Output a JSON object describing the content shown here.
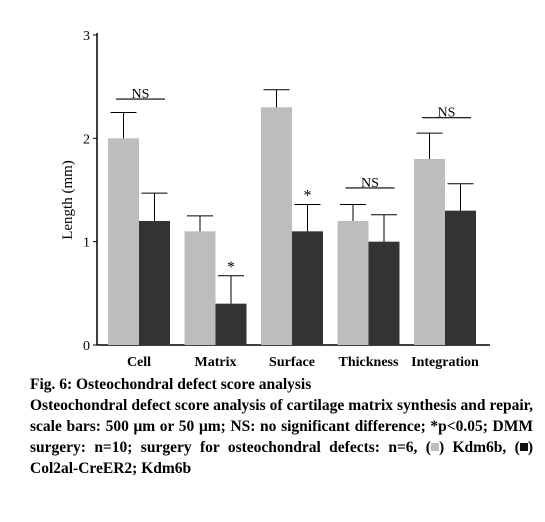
{
  "chart_data": {
    "type": "bar",
    "title": "",
    "xlabel": "",
    "ylabel": "Length (mm)",
    "ylim": [
      0,
      3
    ],
    "yticks": [
      0,
      1,
      2,
      3
    ],
    "grid": false,
    "categories": [
      "Cell",
      "Matrix",
      "Surface",
      "Thickness",
      "Integration"
    ],
    "series": [
      {
        "color": "#bdbdbd",
        "values": [
          2.0,
          1.1,
          2.3,
          1.2,
          1.8
        ],
        "errors": [
          0.25,
          0.15,
          0.17,
          0.16,
          0.25
        ]
      },
      {
        "color": "#333333",
        "values": [
          1.2,
          0.4,
          1.1,
          1.0,
          1.3
        ],
        "errors": [
          0.27,
          0.27,
          0.26,
          0.26,
          0.26
        ]
      }
    ],
    "annotations": [
      {
        "category": 0,
        "text": "NS",
        "type": "bracket",
        "y": 2.38
      },
      {
        "category": 1,
        "text": "*",
        "type": "star",
        "series": 1
      },
      {
        "category": 2,
        "text": "*",
        "type": "star",
        "series": 1
      },
      {
        "category": 3,
        "text": "NS",
        "type": "bracket",
        "y": 1.52
      },
      {
        "category": 4,
        "text": "NS",
        "type": "bracket",
        "y": 2.2
      }
    ]
  },
  "caption": {
    "title": "Fig. 6: Osteochondral defect score analysis",
    "body_part1": "Osteochondral defect score analysis of cartilage matrix synthesis and repair, scale bars: 500 μm or 50 μm; NS: no significant difference; *p<0.05; DMM surgery: n=10; surgery for osteochondral defects: n=6, (",
    "legend_gray_label": ") Kdm6b, (",
    "legend_dark_label": ") Col2al-CreER2; Kdm6b"
  }
}
